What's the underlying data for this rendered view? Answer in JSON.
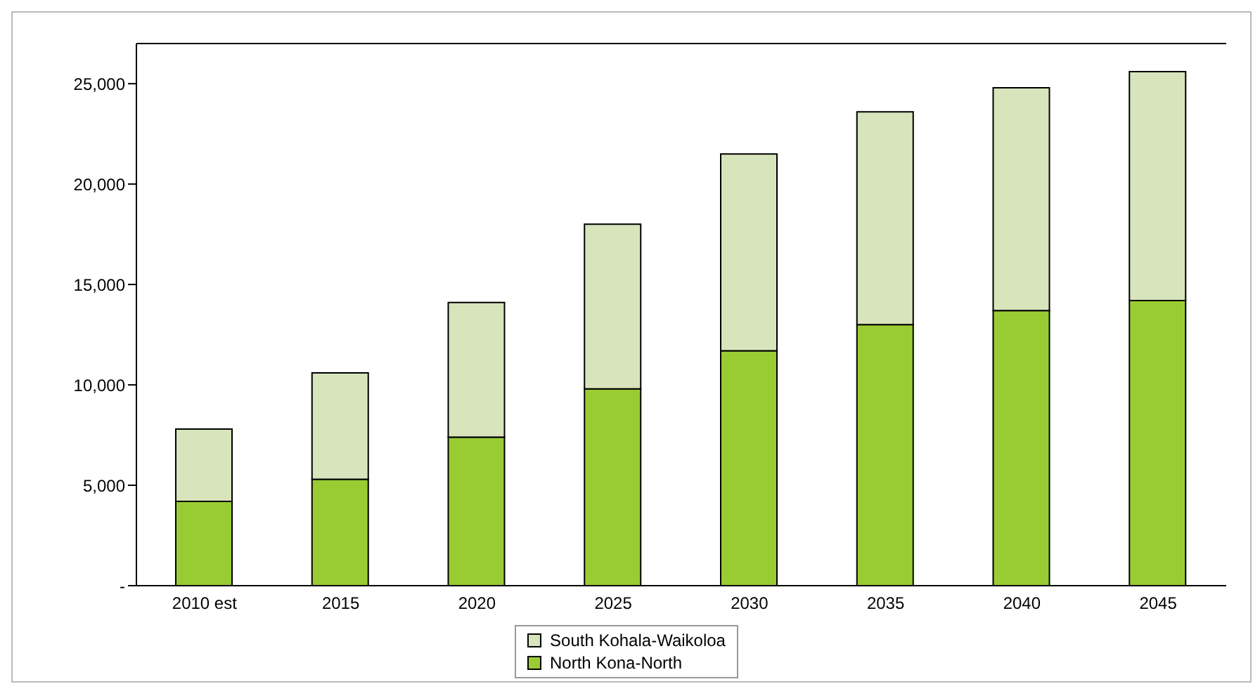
{
  "chart_data": {
    "type": "bar",
    "stacked": true,
    "categories": [
      "2010 est",
      "2015",
      "2020",
      "2025",
      "2030",
      "2035",
      "2040",
      "2045"
    ],
    "series": [
      {
        "name": "North Kona-North",
        "color": "#99cc33",
        "values": [
          4200,
          5300,
          7400,
          9800,
          11700,
          13000,
          13700,
          14200
        ]
      },
      {
        "name": "South Kohala-Waikoloa",
        "color": "#d8e4bc",
        "values": [
          3600,
          5300,
          6700,
          8200,
          9800,
          10600,
          11100,
          11400
        ]
      }
    ],
    "ylim": [
      0,
      27000
    ],
    "yticks": [
      {
        "value": 0,
        "label": "-"
      },
      {
        "value": 5000,
        "label": "5,000"
      },
      {
        "value": 10000,
        "label": "10,000"
      },
      {
        "value": 15000,
        "label": "15,000"
      },
      {
        "value": 20000,
        "label": "20,000"
      },
      {
        "value": 25000,
        "label": "25,000"
      }
    ],
    "grid": false,
    "legend": "bottom"
  }
}
